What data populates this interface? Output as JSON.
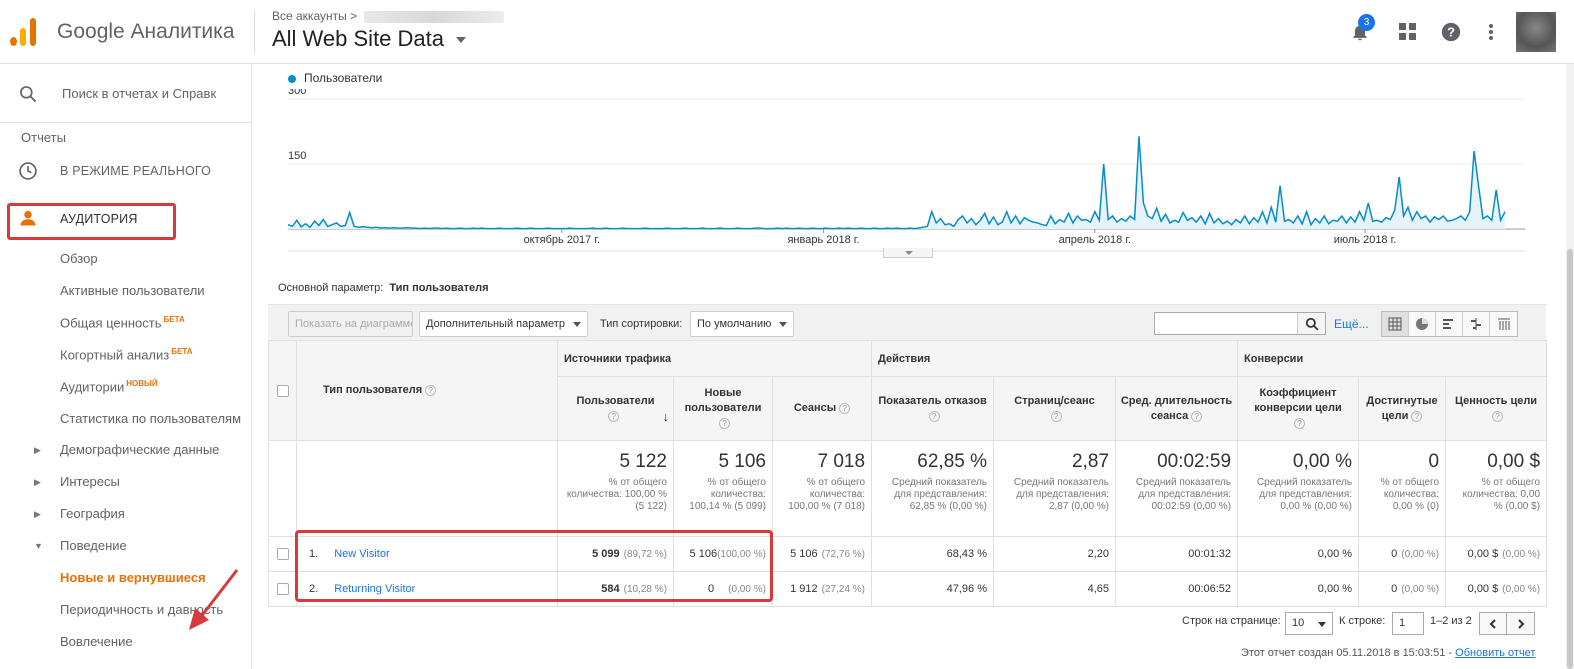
{
  "header": {
    "brand": "Google Аналитика",
    "account_crumb": "Все аккаунты >",
    "property_title": "All Web Site Data",
    "notif_count": "3",
    "colors": {
      "logo_orange": "#f9ab00",
      "logo_dark": "#e37400"
    }
  },
  "sidebar": {
    "search_placeholder": "Поиск в отчетах и Справк",
    "reports_label": "Отчеты",
    "realtime_label": "В РЕЖИМЕ РЕАЛЬНОГО",
    "audience_label": "АУДИТОРИЯ",
    "items": [
      {
        "label": "Обзор"
      },
      {
        "label": "Активные пользователи"
      },
      {
        "label": "Общая ценность",
        "badge": "БЕТА"
      },
      {
        "label": "Когортный анализ",
        "badge": "БЕТА"
      },
      {
        "label": "Аудитории",
        "badge": "НОВЫЙ"
      },
      {
        "label": "Статистика по пользователям"
      },
      {
        "label": "Демографические данные"
      },
      {
        "label": "Интересы"
      },
      {
        "label": "География"
      },
      {
        "label": "Поведение"
      },
      {
        "label": "Новые и вернувшиеся"
      },
      {
        "label": "Периодичность и давность"
      },
      {
        "label": "Вовлечение"
      }
    ]
  },
  "chart": {
    "legend": "Пользователи",
    "y_ticks": [
      "300",
      "150"
    ],
    "x_ticks": [
      "октябрь 2017 г.",
      "январь 2018 г.",
      "апрель 2018 г.",
      "июль 2018 г."
    ],
    "color": "#058dc7"
  },
  "chart_data": {
    "type": "area",
    "series": [
      {
        "name": "Пользователи",
        "values": [
          10,
          6,
          20,
          5,
          12,
          4,
          18,
          8,
          22,
          6,
          10,
          14,
          6,
          8,
          38,
          6,
          4,
          5,
          4,
          3,
          4,
          2,
          3,
          2,
          3,
          2,
          2,
          3,
          2,
          2,
          1,
          2,
          1,
          2,
          2,
          1,
          2,
          1,
          1,
          2,
          1,
          1,
          2,
          1,
          2,
          1,
          1,
          1,
          2,
          1,
          1,
          1,
          2,
          1,
          1,
          2,
          1,
          1,
          1,
          2,
          1,
          1,
          1,
          1,
          2,
          1,
          1,
          1,
          1,
          2,
          1,
          1,
          2,
          1,
          1,
          1,
          2,
          1,
          1,
          1,
          1,
          2,
          1,
          1,
          1,
          1,
          2,
          1,
          1,
          1,
          2,
          1,
          1,
          1,
          2,
          1,
          1,
          1,
          2,
          1,
          1,
          1,
          2,
          1,
          1,
          1,
          2,
          2,
          1,
          1,
          1,
          2,
          1,
          2,
          1,
          1,
          2,
          1,
          1,
          2,
          1,
          1,
          2,
          1,
          1,
          2,
          1,
          2,
          1,
          1,
          2,
          1,
          1,
          2,
          1,
          1,
          2,
          1,
          2,
          1,
          1,
          2,
          1,
          2,
          4,
          6,
          40,
          14,
          24,
          10,
          12,
          6,
          22,
          30,
          14,
          24,
          10,
          20,
          36,
          12,
          28,
          10,
          16,
          40,
          14,
          30,
          12,
          26,
          20,
          16,
          14,
          10,
          8,
          30,
          12,
          22,
          16,
          36,
          14,
          30,
          20,
          22,
          16,
          40,
          20,
          150,
          22,
          30,
          16,
          24,
          18,
          30,
          22,
          214,
          60,
          30,
          24,
          48,
          18,
          34,
          14,
          20,
          16,
          38,
          20,
          26,
          16,
          30,
          12,
          36,
          14,
          24,
          12,
          18,
          10,
          22,
          14,
          30,
          12,
          26,
          16,
          40,
          14,
          50,
          16,
          100,
          18,
          22,
          14,
          30,
          12,
          40,
          10,
          24,
          14,
          30,
          12,
          20,
          18,
          30,
          14,
          28,
          16,
          40,
          20,
          60,
          18,
          20,
          16,
          26,
          22,
          44,
          120,
          30,
          50,
          20,
          40,
          24,
          30,
          16,
          28,
          22,
          30,
          18,
          20,
          24,
          30,
          20,
          40,
          180,
          100,
          24,
          30,
          20,
          90,
          20,
          40
        ]
      }
    ],
    "x_labels": [
      "октябрь 2017 г.",
      "январь 2018 г.",
      "апрель 2018 г.",
      "июль 2018 г."
    ],
    "ylim": [
      0,
      300
    ],
    "y_ticks": [
      150,
      300
    ],
    "grid": true
  },
  "primary_dim": {
    "label": "Основной параметр:",
    "value": "Тип пользователя"
  },
  "toolbar": {
    "plot_btn": "Показать на диаграмме",
    "secondary_dim": "Дополнительный параметр",
    "sort_label": "Тип сортировки:",
    "sort_value": "По умолчанию",
    "more": "Ещё..."
  },
  "table": {
    "dim_header": "Тип пользователя",
    "groups": {
      "acquisition": "Источники трафика",
      "behavior": "Действия",
      "conversions": "Конверсии"
    },
    "cols": {
      "users": "Пользователи",
      "new_users": "Новые пользователи",
      "sessions": "Сеансы",
      "bounce": "Показатель отказов",
      "pages": "Страниц/сеанс",
      "duration": "Сред. длительность сеанса",
      "conv": "Коэффициент конверсии цели",
      "goals": "Достигнутые цели",
      "value": "Ценность цели"
    },
    "totals": {
      "users": "5 122",
      "users_sub": "% от общего количества: 100,00 % (5 122)",
      "new_users": "5 106",
      "new_users_sub": "% от общего количества: 100,14 % (5 099)",
      "sessions": "7 018",
      "sessions_sub": "% от общего количества: 100,00 % (7 018)",
      "bounce": "62,85 %",
      "bounce_sub": "Средний показатель для представления: 62,85 % (0,00 %)",
      "pages": "2,87",
      "pages_sub": "Средний показатель для представления: 2,87 (0,00 %)",
      "duration": "00:02:59",
      "duration_sub": "Средний показатель для представления: 00:02:59 (0,00 %)",
      "conv": "0,00 %",
      "conv_sub": "Средний показатель для представления: 0,00 % (0,00 %)",
      "goals": "0",
      "goals_sub": "% от общего количества: 0,00 % (0)",
      "value": "0,00 $",
      "value_sub": "% от общего количества: 0,00 % (0,00 $)"
    },
    "rows": [
      {
        "idx": "1.",
        "name": "New Visitor",
        "users": "5 099",
        "users_pct": "(89,72 %)",
        "new_users": "5 106",
        "new_users_pct": "(100,00 %)",
        "sessions": "5 106",
        "sessions_pct": "(72,76 %)",
        "bounce": "68,43 %",
        "pages": "2,20",
        "duration": "00:01:32",
        "conv": "0,00 %",
        "goals": "0",
        "goals_pct": "(0,00 %)",
        "value": "0,00 $",
        "value_pct": "(0,00 %)"
      },
      {
        "idx": "2.",
        "name": "Returning Visitor",
        "users": "584",
        "users_pct": "(10,28 %)",
        "new_users": "0",
        "new_users_pct": "(0,00 %)",
        "sessions": "1 912",
        "sessions_pct": "(27,24 %)",
        "bounce": "47,96 %",
        "pages": "4,65",
        "duration": "00:06:52",
        "conv": "0,00 %",
        "goals": "0",
        "goals_pct": "(0,00 %)",
        "value": "0,00 $",
        "value_pct": "(0,00 %)"
      }
    ]
  },
  "pager": {
    "rows_label": "Строк на странице:",
    "rows_value": "10",
    "goto_label": "К строке:",
    "goto_value": "1",
    "range": "1–2 из 2"
  },
  "footer": {
    "created": "Этот отчет создан 05.11.2018 в 15:03:51 -",
    "refresh": "Обновить отчет"
  }
}
